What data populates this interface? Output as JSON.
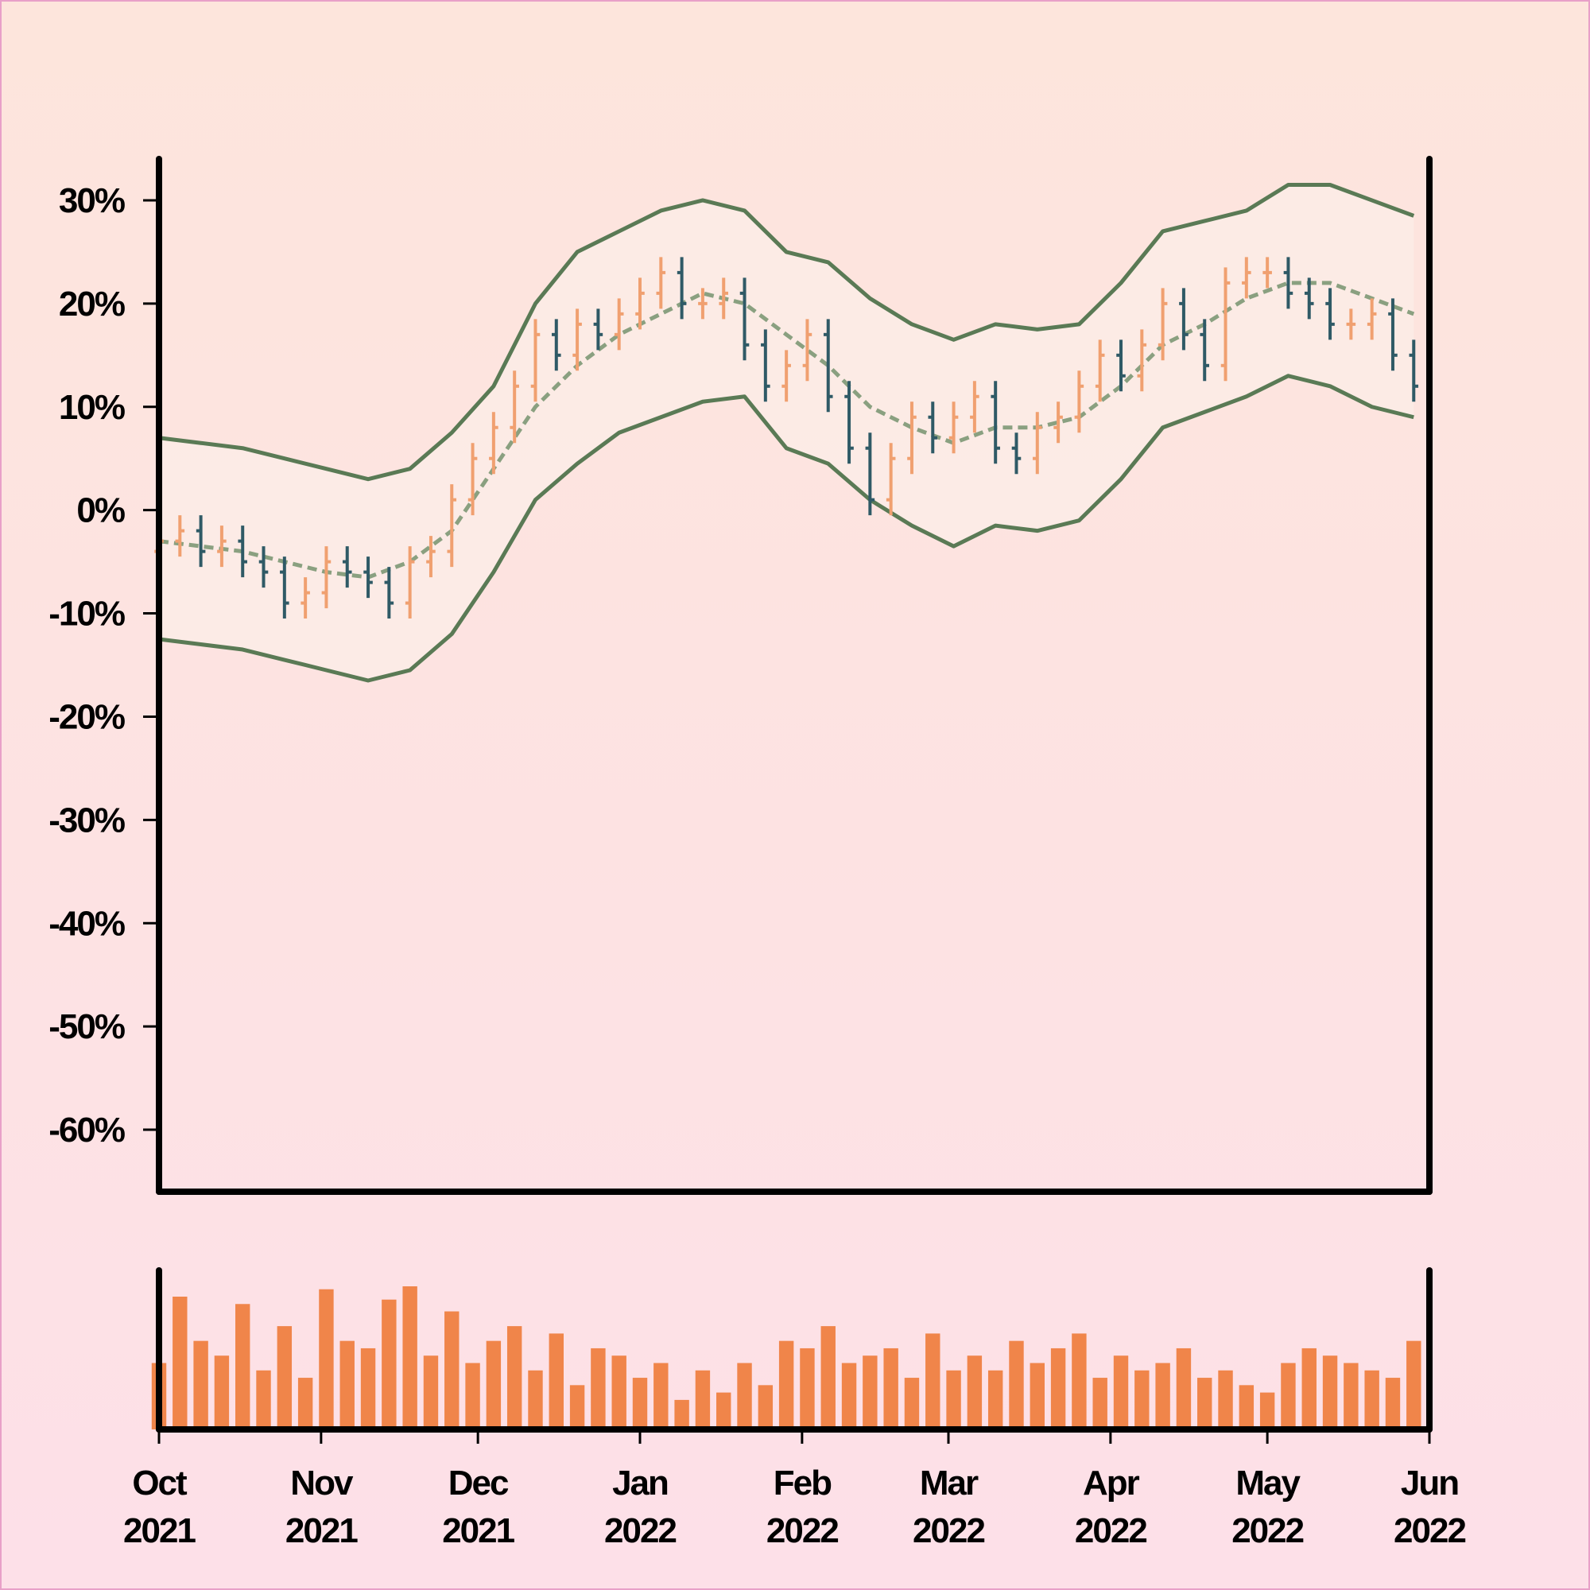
{
  "chart_data": {
    "type": "ohlc",
    "x": [
      0,
      4,
      8,
      12,
      16,
      20,
      24,
      28,
      32,
      36,
      40,
      44,
      48,
      52,
      56,
      60,
      64,
      68,
      72,
      76,
      80,
      84,
      88,
      92,
      96,
      100,
      104,
      108,
      112,
      116,
      120,
      124,
      128,
      132,
      136,
      140,
      144,
      148,
      152,
      156,
      160,
      164,
      168,
      172,
      176,
      180,
      184,
      188,
      192,
      196,
      200,
      204,
      208,
      212,
      216,
      220,
      224,
      228,
      232,
      236,
      240
    ],
    "open": [
      -4,
      -3,
      -2,
      -4,
      -3,
      -5,
      -6,
      -9,
      -8,
      -5,
      -6,
      -7,
      -9,
      -5,
      -4,
      1,
      5,
      8,
      12,
      17,
      15,
      18,
      17,
      19,
      21,
      23,
      20,
      20,
      21,
      16,
      12,
      14,
      17,
      11,
      6,
      1,
      5,
      9,
      7,
      9,
      11,
      6,
      5,
      8,
      9,
      12,
      15,
      13,
      16,
      20,
      17,
      14,
      22,
      23,
      23,
      21,
      20,
      18,
      18,
      19,
      15
    ],
    "high": [
      -1.5,
      -0.5,
      -0.5,
      -1.5,
      -1.5,
      -3.5,
      -4.5,
      -6.5,
      -3.5,
      -3.5,
      -4.5,
      -5.5,
      -3.5,
      -2.5,
      2.5,
      6.5,
      9.5,
      13.5,
      18.5,
      18.5,
      19.5,
      19.5,
      20.5,
      22.5,
      24.5,
      24.5,
      21.5,
      22.5,
      22.5,
      17.5,
      15.5,
      18.5,
      18.5,
      12.5,
      7.5,
      6.5,
      10.5,
      10.5,
      10.5,
      12.5,
      12.5,
      7.5,
      9.5,
      10.5,
      13.5,
      16.5,
      16.5,
      17.5,
      21.5,
      21.5,
      18.5,
      23.5,
      24.5,
      24.5,
      24.5,
      22.5,
      21.5,
      19.5,
      20.5,
      20.5,
      16.5
    ],
    "low": [
      -5.5,
      -4.5,
      -5.5,
      -5.5,
      -6.5,
      -7.5,
      -10.5,
      -10.5,
      -9.5,
      -7.5,
      -8.5,
      -10.5,
      -10.5,
      -6.5,
      -5.5,
      -0.5,
      3.5,
      6.5,
      10.5,
      13.5,
      13.5,
      15.5,
      15.5,
      17.5,
      19.5,
      18.5,
      18.5,
      18.5,
      14.5,
      10.5,
      10.5,
      12.5,
      9.5,
      4.5,
      -0.5,
      -0.5,
      3.5,
      5.5,
      5.5,
      7.5,
      4.5,
      3.5,
      3.5,
      6.5,
      7.5,
      10.5,
      11.5,
      11.5,
      14.5,
      15.5,
      12.5,
      12.5,
      20.5,
      21.5,
      19.5,
      18.5,
      16.5,
      16.5,
      16.5,
      13.5,
      10.5
    ],
    "close": [
      -3,
      -2,
      -4,
      -3,
      -5,
      -6,
      -9,
      -8,
      -5,
      -6,
      -7,
      -9,
      -5,
      -4,
      1,
      5,
      8,
      12,
      17,
      15,
      18,
      17,
      19,
      21,
      23,
      20,
      20,
      21,
      16,
      12,
      14,
      17,
      11,
      6,
      1,
      5,
      9,
      7,
      9,
      11,
      6,
      5,
      8,
      9,
      12,
      15,
      13,
      16,
      20,
      17,
      14,
      22,
      23,
      23,
      21,
      20,
      18,
      18,
      19,
      15,
      12
    ],
    "up_color": "#f0a070",
    "down_color": "#2f5a66",
    "xlim": [
      0,
      243
    ],
    "xticks": [
      {
        "value": 0,
        "label": "Oct 2021"
      },
      {
        "value": 31,
        "label": "Nov 2021"
      },
      {
        "value": 61,
        "label": "Dec 2021"
      },
      {
        "value": 92,
        "label": "Jan 2022"
      },
      {
        "value": 123,
        "label": "Feb 2022"
      },
      {
        "value": 151,
        "label": "Mar 2022"
      },
      {
        "value": 182,
        "label": "Apr 2022"
      },
      {
        "value": 212,
        "label": "May 2022"
      },
      {
        "value": 243,
        "label": "Jun 2022"
      }
    ],
    "ylim": [
      -66,
      34
    ],
    "yticks": [
      {
        "value": 30,
        "label": "30%"
      },
      {
        "value": 20,
        "label": "20%"
      },
      {
        "value": 10,
        "label": "10%"
      },
      {
        "value": 0,
        "label": "0%"
      },
      {
        "value": -10,
        "label": "-10%"
      },
      {
        "value": -20,
        "label": "-20%"
      },
      {
        "value": -30,
        "label": "-30%"
      },
      {
        "value": -40,
        "label": "-40%"
      },
      {
        "value": -50,
        "label": "-50%"
      },
      {
        "value": -60,
        "label": "-60%"
      }
    ],
    "bands": {
      "x": [
        0,
        8,
        16,
        24,
        32,
        40,
        48,
        56,
        64,
        72,
        80,
        88,
        96,
        104,
        112,
        120,
        128,
        136,
        144,
        152,
        160,
        168,
        176,
        184,
        192,
        200,
        208,
        216,
        224,
        232,
        240
      ],
      "upper": [
        7,
        6.5,
        6,
        5,
        4,
        3,
        4,
        7.5,
        12,
        20,
        25,
        27,
        29,
        30,
        29,
        25,
        24,
        20.5,
        18,
        16.5,
        18,
        17.5,
        18,
        22,
        27,
        28,
        29,
        31.5,
        31.5,
        30,
        28.5
      ],
      "middle": [
        -3,
        -3.5,
        -4,
        -5,
        -6,
        -6.5,
        -5,
        -2,
        4,
        10,
        14,
        17,
        19,
        21,
        20,
        17,
        14,
        10,
        8,
        6.5,
        8,
        8,
        9,
        12,
        16,
        18,
        20.5,
        22,
        22,
        20.5,
        19
      ],
      "lower": [
        -12.5,
        -13,
        -13.5,
        -14.5,
        -15.5,
        -16.5,
        -15.5,
        -12,
        -6,
        1,
        4.5,
        7.5,
        9,
        10.5,
        11,
        6,
        4.5,
        1,
        -1.5,
        -3.5,
        -1.5,
        -2,
        -1,
        3,
        8,
        9.5,
        11,
        13,
        12,
        10,
        9
      ],
      "color": "#5a7a55",
      "middle_color": "#8aa080"
    },
    "volume": {
      "values": [
        45,
        90,
        60,
        50,
        85,
        40,
        70,
        35,
        95,
        60,
        55,
        88,
        97,
        50,
        80,
        45,
        60,
        70,
        40,
        65,
        30,
        55,
        50,
        35,
        45,
        20,
        40,
        25,
        45,
        30,
        60,
        55,
        70,
        45,
        50,
        55,
        35,
        65,
        40,
        50,
        40,
        60,
        45,
        55,
        65,
        35,
        50,
        40,
        45,
        55,
        35,
        40,
        30,
        25,
        45,
        55,
        50,
        45,
        40,
        35,
        60
      ],
      "color": "#f0854a"
    }
  }
}
